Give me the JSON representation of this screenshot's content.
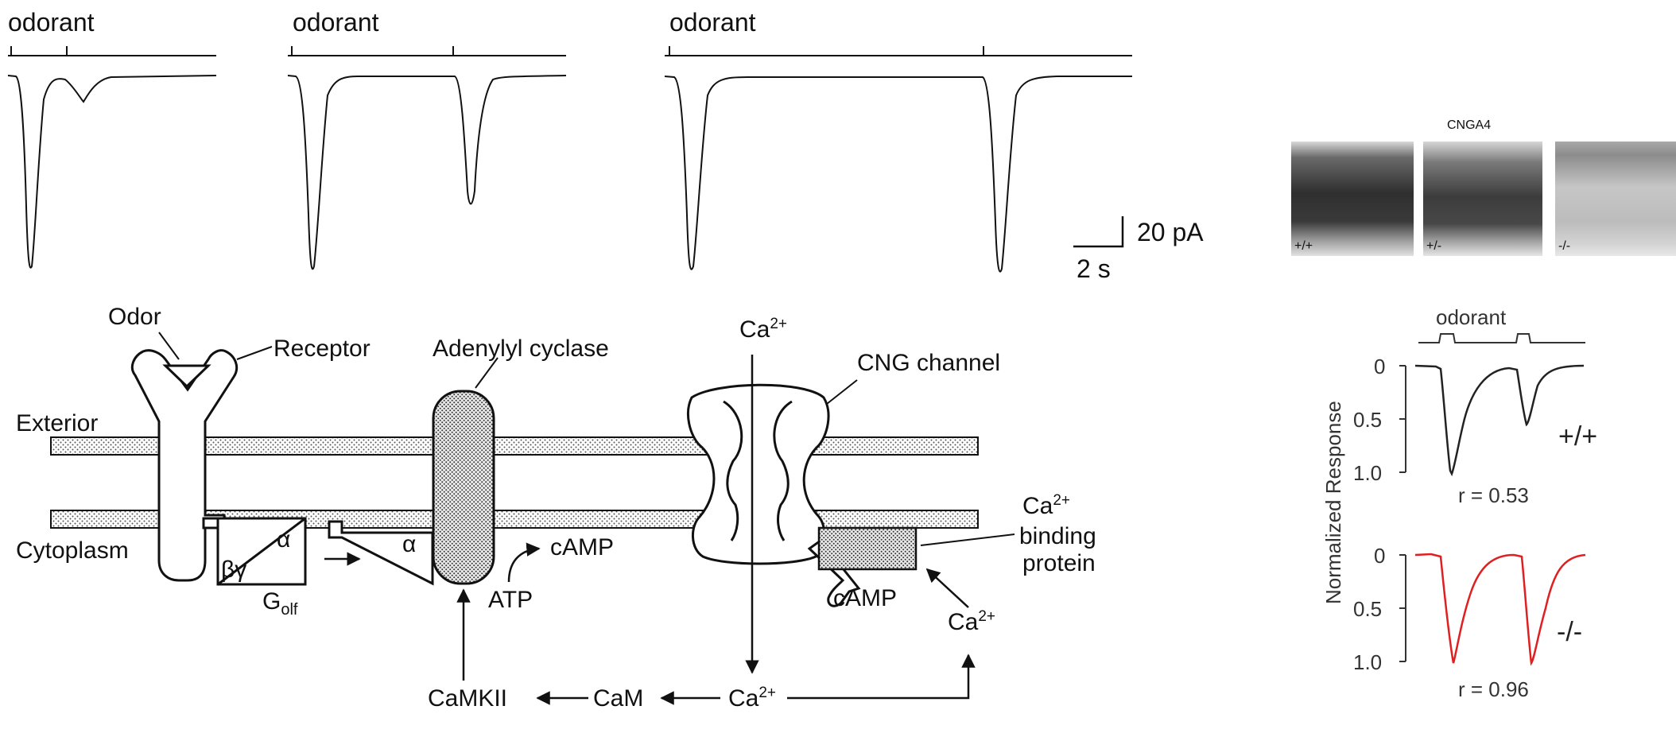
{
  "recordings": {
    "stimulus_label": "odorant",
    "scale_current": "20 pA",
    "scale_time": "2 s"
  },
  "pathway": {
    "odor": "Odor",
    "receptor": "Receptor",
    "adenylyl_cyclase": "Adenylyl cyclase",
    "exterior": "Exterior",
    "cytoplasm": "Cytoplasm",
    "alpha": "α",
    "beta_gamma": "βγ",
    "g_olf_main": "G",
    "g_olf_sub": "olf",
    "camp": "cAMP",
    "atp": "ATP",
    "cng_channel": "CNG channel",
    "ca_base": "Ca",
    "ca_charge": "2+",
    "binding_protein_line1": "binding",
    "binding_protein_line2": "protein",
    "camkii": "CaMKII",
    "cam": "CaM"
  },
  "histology": {
    "title": "CNGA4",
    "panels": [
      {
        "genotype": "+/+",
        "shade": "#3a3a3a"
      },
      {
        "genotype": "+/-",
        "shade": "#4a4a4a"
      },
      {
        "genotype": "-/-",
        "shade": "#bdbdbd"
      }
    ]
  },
  "normalized": {
    "stimulus_label": "odorant",
    "ylabel": "Normalized Response",
    "ticks": [
      "0",
      "0.5",
      "1.0"
    ],
    "wildtype": {
      "genotype": "+/+",
      "r_label": "r = 0.53",
      "color": "#222222"
    },
    "knockout": {
      "genotype": "-/-",
      "r_label": "r = 0.96",
      "color": "#e02020"
    }
  }
}
